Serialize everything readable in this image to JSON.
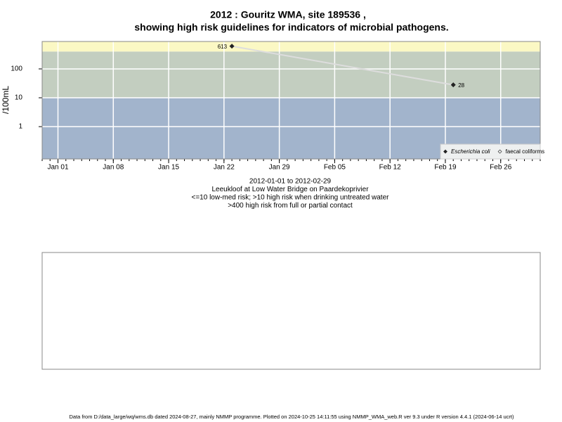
{
  "chart_data": {
    "type": "line",
    "title": "2012 : Gouritz WMA, site 189536 ,",
    "subtitle": "showing high risk guidelines for indicators of microbial pathogens.",
    "ylabel": "/100mL",
    "log_y": true,
    "grid": true,
    "ylim": [
      0.076,
      890
    ],
    "yticks": [
      1,
      10,
      100
    ],
    "xlim": [
      "2011-12-30",
      "2012-03-02"
    ],
    "xticks": [
      {
        "value": "2012-01-01",
        "label": "Jan 01"
      },
      {
        "value": "2012-01-08",
        "label": "Jan 08"
      },
      {
        "value": "2012-01-15",
        "label": "Jan 15"
      },
      {
        "value": "2012-01-22",
        "label": "Jan 22"
      },
      {
        "value": "2012-01-29",
        "label": "Jan 29"
      },
      {
        "value": "2012-02-05",
        "label": "Feb 05"
      },
      {
        "value": "2012-02-12",
        "label": "Feb 12"
      },
      {
        "value": "2012-02-19",
        "label": "Feb 19"
      },
      {
        "value": "2012-02-26",
        "label": "Feb 26"
      }
    ],
    "bands": [
      {
        "to": 10,
        "color": "#a2b4cc"
      },
      {
        "to": 400,
        "color": "#c3cec0"
      },
      {
        "to": 890,
        "color": "#fbf8c4"
      }
    ],
    "x": [
      "2012-01-23",
      "2012-02-20"
    ],
    "series": [
      {
        "name": "Escherichia coli",
        "color": "#222222",
        "line_color": "#dddddd",
        "values": [
          613,
          28
        ],
        "value_labels": [
          "613",
          "28"
        ]
      },
      {
        "name": "faecal coliforms",
        "color": "#222222",
        "values": [
          null,
          null
        ]
      }
    ],
    "legend": "bottom-right",
    "notes": [
      "2012-01-01 to 2012-02-29",
      "Leeukloof at Low Water Bridge on Paardekoprivier",
      "<=10 low-med risk; >10 high risk when drinking untreated water",
      ">400 high risk from full or partial contact"
    ],
    "footer": "Data from D:/data_large/wq/wms.db dated 2024-08-27, mainly NMMP programme. Plotted on 2024-10-25 14:11:55 using NMMP_WMA_web.R ver 9.3 under R version 4.4.1 (2024-06-14 ucrt)"
  }
}
